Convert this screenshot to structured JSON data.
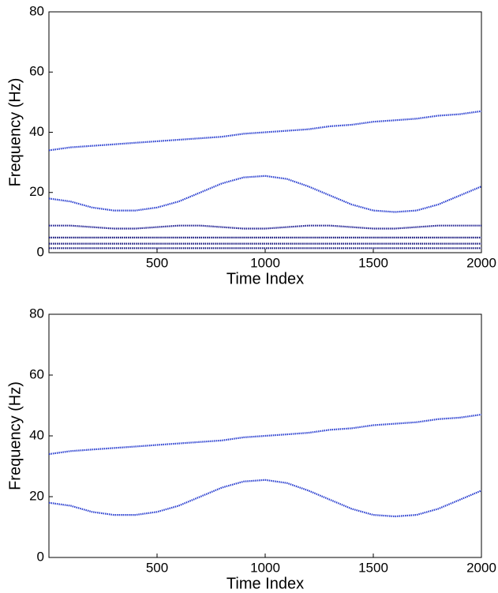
{
  "chart_data": [
    {
      "type": "line",
      "xlabel": "Time Index",
      "ylabel": "Frequency (Hz)",
      "x": [
        0,
        100,
        200,
        300,
        400,
        500,
        600,
        700,
        800,
        900,
        1000,
        1100,
        1200,
        1300,
        1400,
        1500,
        1600,
        1700,
        1800,
        1900,
        2000
      ],
      "xlim": [
        0,
        2000
      ],
      "ylim": [
        0,
        80
      ],
      "xticks": [
        500,
        1000,
        1500,
        2000
      ],
      "yticks": [
        0,
        20,
        40,
        60,
        80
      ],
      "grid": false,
      "series": [
        {
          "color": "#2a3fd0",
          "values": [
            34,
            35,
            35.5,
            36,
            36.5,
            37,
            37.5,
            38,
            38.5,
            39.5,
            40,
            40.5,
            41,
            42,
            42.5,
            43.5,
            44,
            44.5,
            45.5,
            46,
            47
          ]
        },
        {
          "color": "#2a3fd0",
          "values": [
            18,
            17,
            15,
            14,
            14,
            15,
            17,
            20,
            23,
            25,
            25.5,
            24.5,
            22,
            19,
            16,
            14,
            13.5,
            14,
            16,
            19,
            22
          ]
        },
        {
          "color": "#1a1a90",
          "values": [
            9,
            9,
            8.5,
            8,
            8,
            8.5,
            9,
            9,
            8.5,
            8,
            8,
            8.5,
            9,
            9,
            8.5,
            8,
            8,
            8.5,
            9,
            9,
            9
          ]
        },
        {
          "color": "#10107a",
          "values": [
            5,
            5,
            5,
            5,
            5,
            5,
            5,
            5,
            5,
            5,
            5,
            5,
            5,
            5,
            5,
            5,
            5,
            5,
            5,
            5,
            5
          ]
        },
        {
          "color": "#10107a",
          "values": [
            3,
            3,
            3,
            3,
            3,
            3,
            3,
            3,
            3,
            3,
            3,
            3,
            3,
            3,
            3,
            3,
            3,
            3,
            3,
            3,
            3
          ]
        },
        {
          "color": "#10107a",
          "values": [
            1.5,
            1.5,
            1.5,
            1.5,
            1.5,
            1.5,
            1.5,
            1.5,
            1.5,
            1.5,
            1.5,
            1.5,
            1.5,
            1.5,
            1.5,
            1.5,
            1.5,
            1.5,
            1.5,
            1.5,
            1.5
          ]
        }
      ]
    },
    {
      "type": "line",
      "xlabel": "Time Index",
      "ylabel": "Frequency (Hz)",
      "x": [
        0,
        100,
        200,
        300,
        400,
        500,
        600,
        700,
        800,
        900,
        1000,
        1100,
        1200,
        1300,
        1400,
        1500,
        1600,
        1700,
        1800,
        1900,
        2000
      ],
      "xlim": [
        0,
        2000
      ],
      "ylim": [
        0,
        80
      ],
      "xticks": [
        500,
        1000,
        1500,
        2000
      ],
      "yticks": [
        0,
        20,
        40,
        60,
        80
      ],
      "grid": false,
      "series": [
        {
          "color": "#2a3fd0",
          "values": [
            34,
            35,
            35.5,
            36,
            36.5,
            37,
            37.5,
            38,
            38.5,
            39.5,
            40,
            40.5,
            41,
            42,
            42.5,
            43.5,
            44,
            44.5,
            45.5,
            46,
            47
          ]
        },
        {
          "color": "#2a3fd0",
          "values": [
            18,
            17,
            15,
            14,
            14,
            15,
            17,
            20,
            23,
            25,
            25.5,
            24.5,
            22,
            19,
            16,
            14,
            13.5,
            14,
            16,
            19,
            22
          ]
        }
      ]
    }
  ]
}
